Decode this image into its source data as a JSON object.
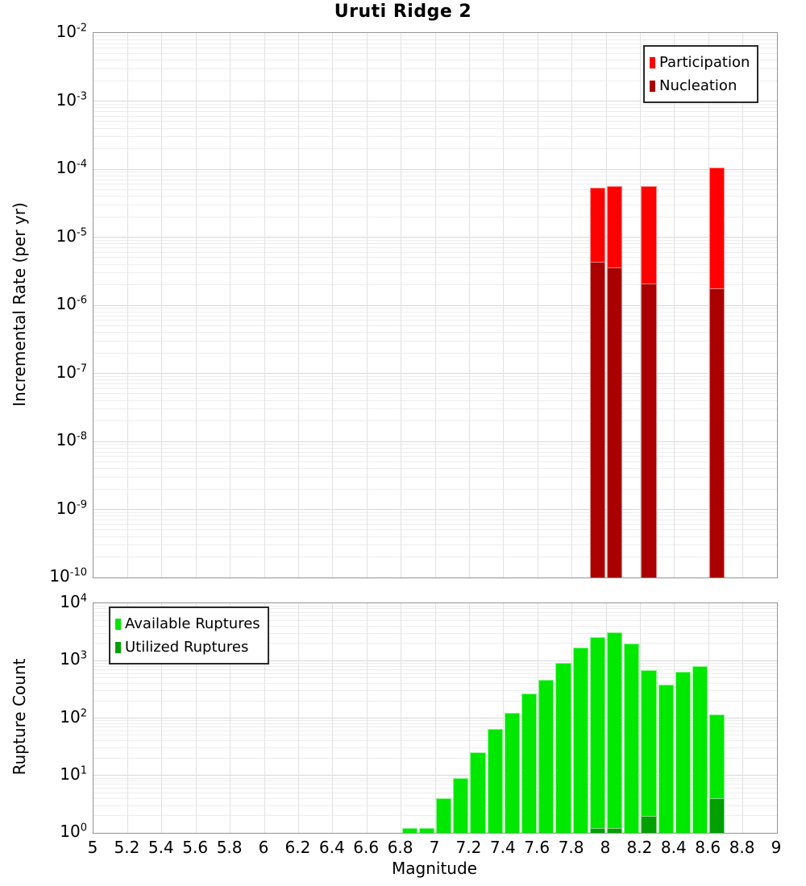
{
  "title": "Uruti Ridge 2",
  "x_axis": {
    "label": "Magnitude",
    "min": 5,
    "max": 9,
    "tick_labels": [
      "5",
      "5.2",
      "5.4",
      "5.6",
      "5.8",
      "6",
      "6.2",
      "6.4",
      "6.6",
      "6.8",
      "7",
      "7.2",
      "7.4",
      "7.6",
      "7.8",
      "8",
      "8.2",
      "8.4",
      "8.6",
      "8.8",
      "9"
    ]
  },
  "chart_data": [
    {
      "type": "bar",
      "title": "Uruti Ridge 2",
      "ylabel": "Incremental Rate (per yr)",
      "xlabel": "Magnitude",
      "y_scale": "log",
      "ylim": [
        1e-10,
        0.01
      ],
      "y_tick_exponents": [
        -2,
        -3,
        -4,
        -5,
        -6,
        -7,
        -8,
        -9,
        -10
      ],
      "xlim": [
        5,
        9
      ],
      "bin_width": 0.1,
      "categories": [
        7.95,
        8.05,
        8.25,
        8.65
      ],
      "series": [
        {
          "name": "Participation",
          "color": "#ff0000",
          "values": [
            5.3e-05,
            5.7e-05,
            5.6e-05,
            0.000105
          ]
        },
        {
          "name": "Nucleation",
          "color": "#aa0000",
          "values": [
            4.4e-06,
            3.6e-06,
            2.1e-06,
            1.75e-06
          ]
        }
      ],
      "legend_position": "top-right",
      "grid": true
    },
    {
      "type": "bar",
      "ylabel": "Rupture Count",
      "xlabel": "Magnitude",
      "y_scale": "log",
      "ylim": [
        1,
        10000
      ],
      "y_tick_exponents": [
        4,
        3,
        2,
        1,
        0
      ],
      "xlim": [
        5,
        9
      ],
      "bin_width": 0.1,
      "categories": [
        6.85,
        6.95,
        7.05,
        7.15,
        7.25,
        7.35,
        7.45,
        7.55,
        7.65,
        7.75,
        7.85,
        7.95,
        8.05,
        8.15,
        8.25,
        8.35,
        8.45,
        8.55,
        8.65
      ],
      "series": [
        {
          "name": "Available Ruptures",
          "color": "#00e800",
          "values": [
            1,
            1,
            4,
            9,
            25,
            65,
            125,
            270,
            460,
            930,
            1700,
            2600,
            3100,
            2000,
            680,
            380,
            650,
            800,
            115
          ]
        },
        {
          "name": "Utilized Ruptures",
          "color": "#00a000",
          "values": [
            0,
            0,
            0,
            0,
            0,
            0,
            0,
            0,
            0,
            0,
            0,
            1,
            1,
            0,
            2,
            0,
            0,
            0,
            4
          ]
        }
      ],
      "legend_position": "top-left",
      "grid": true
    }
  ]
}
